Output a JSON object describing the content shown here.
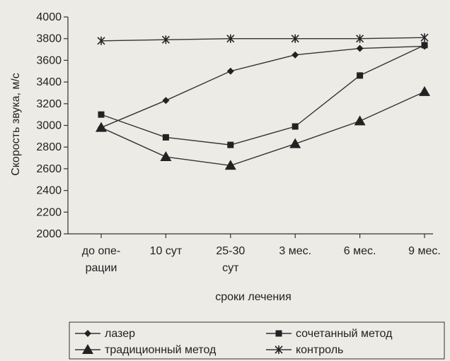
{
  "chart_data": {
    "type": "line",
    "title": "",
    "xlabel": "сроки лечения",
    "ylabel": "Скорость звука, м/с",
    "ylim": [
      2000,
      4000
    ],
    "ystep": 200,
    "grid": false,
    "legend_position": "bottom",
    "categories": [
      [
        "до опе-",
        "рации"
      ],
      [
        "10 сут"
      ],
      [
        "25-30",
        "сут"
      ],
      [
        "3 мес."
      ],
      [
        "6 мес."
      ],
      [
        "9 мес."
      ]
    ],
    "series": [
      {
        "name": "лазер",
        "marker": "diamond",
        "values": [
          2980,
          3230,
          3500,
          3650,
          3710,
          3730
        ]
      },
      {
        "name": "сочетанный метод",
        "marker": "square",
        "values": [
          3100,
          2890,
          2820,
          2990,
          3460,
          3740
        ]
      },
      {
        "name": "традиционный метод",
        "marker": "triangle",
        "values": [
          2980,
          2710,
          2630,
          2830,
          3040,
          3310
        ]
      },
      {
        "name": "контроль",
        "marker": "star",
        "values": [
          3780,
          3790,
          3800,
          3800,
          3800,
          3810
        ]
      }
    ],
    "legend_order": [
      0,
      1,
      2,
      3
    ]
  }
}
